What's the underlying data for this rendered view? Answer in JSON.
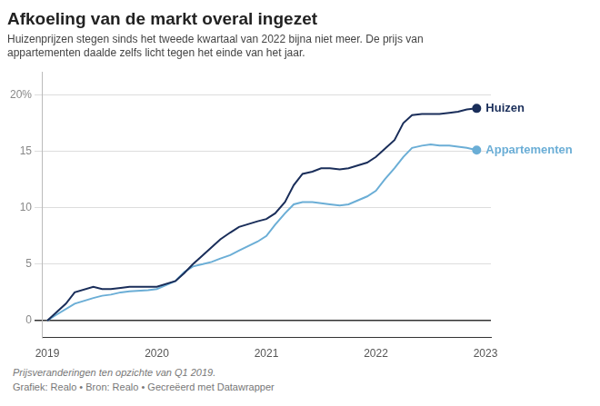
{
  "chart_data": {
    "type": "line",
    "title": "Afkoeling van de markt overal ingezet",
    "subtitle": "Huizenprijzen stegen sinds het tweede kwartaal van 2022 bijna niet meer. De prijs van\nappartementen daalde zelfs licht tegen het einde van het jaar.",
    "footnote": "Prijsveranderingen ten opzichte van Q1 2019.",
    "source": "Grafiek: Realo • Bron: Realo • Gecreëerd met Datawrapper",
    "xlim": [
      2018.95,
      2023.05
    ],
    "xticks": [
      2019,
      2020,
      2021,
      2022,
      2023
    ],
    "ylim": [
      -1.5,
      22
    ],
    "yticks": [
      0,
      5,
      10,
      15,
      {
        "value": 20,
        "label": "20%"
      }
    ],
    "grid": true,
    "series": [
      {
        "name": "Huizen",
        "color": "#1a2e5a",
        "x": [
          2019.0,
          2019.17,
          2019.25,
          2019.42,
          2019.5,
          2019.58,
          2019.67,
          2019.75,
          2019.92,
          2020.0,
          2020.17,
          2020.25,
          2020.33,
          2020.42,
          2020.5,
          2020.58,
          2020.67,
          2020.75,
          2020.92,
          2021.0,
          2021.08,
          2021.17,
          2021.25,
          2021.33,
          2021.42,
          2021.5,
          2021.58,
          2021.67,
          2021.75,
          2021.92,
          2022.0,
          2022.08,
          2022.17,
          2022.25,
          2022.33,
          2022.42,
          2022.5,
          2022.58,
          2022.67,
          2022.75,
          2022.83,
          2022.92
        ],
        "values": [
          0.0,
          1.5,
          2.5,
          3.0,
          2.8,
          2.8,
          2.9,
          3.0,
          3.0,
          3.0,
          3.5,
          4.2,
          5.0,
          5.8,
          6.5,
          7.2,
          7.8,
          8.3,
          8.8,
          9.0,
          9.5,
          10.5,
          12.0,
          13.0,
          13.2,
          13.5,
          13.5,
          13.4,
          13.5,
          14.0,
          14.5,
          15.2,
          16.0,
          17.5,
          18.2,
          18.3,
          18.3,
          18.3,
          18.4,
          18.5,
          18.7,
          18.8
        ]
      },
      {
        "name": "Appartementen",
        "color": "#6baed6",
        "x": [
          2019.0,
          2019.08,
          2019.25,
          2019.42,
          2019.5,
          2019.58,
          2019.67,
          2019.75,
          2019.92,
          2020.0,
          2020.17,
          2020.25,
          2020.33,
          2020.42,
          2020.5,
          2020.58,
          2020.67,
          2020.75,
          2020.92,
          2021.0,
          2021.08,
          2021.17,
          2021.25,
          2021.33,
          2021.42,
          2021.5,
          2021.58,
          2021.67,
          2021.75,
          2021.92,
          2022.0,
          2022.08,
          2022.17,
          2022.25,
          2022.33,
          2022.42,
          2022.5,
          2022.58,
          2022.67,
          2022.75,
          2022.83,
          2022.92
        ],
        "values": [
          0.0,
          0.5,
          1.5,
          2.0,
          2.2,
          2.3,
          2.5,
          2.6,
          2.7,
          2.8,
          3.5,
          4.3,
          4.8,
          5.0,
          5.2,
          5.5,
          5.8,
          6.2,
          7.0,
          7.5,
          8.5,
          9.5,
          10.3,
          10.5,
          10.5,
          10.4,
          10.3,
          10.2,
          10.3,
          11.0,
          11.5,
          12.5,
          13.5,
          14.5,
          15.3,
          15.5,
          15.6,
          15.5,
          15.5,
          15.4,
          15.3,
          15.1
        ]
      }
    ]
  }
}
